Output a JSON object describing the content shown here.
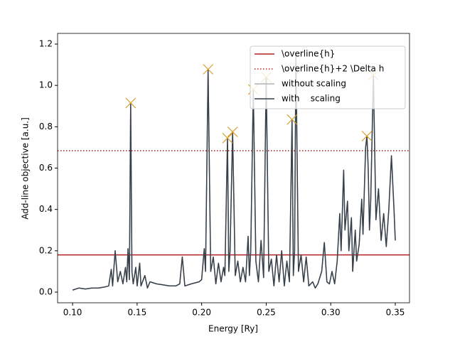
{
  "chart_data": {
    "type": "line",
    "xlabel": "Energy [Ry]",
    "ylabel": "Add-line objective [a.u.]",
    "xlim": [
      0.0884,
      0.361
    ],
    "ylim": [
      -0.0516,
      1.2516
    ],
    "xticks": [
      {
        "value": 0.1,
        "label": "0.10"
      },
      {
        "value": 0.15,
        "label": "0.15"
      },
      {
        "value": 0.2,
        "label": "0.20"
      },
      {
        "value": 0.25,
        "label": "0.25"
      },
      {
        "value": 0.3,
        "label": "0.30"
      },
      {
        "value": 0.35,
        "label": "0.35"
      }
    ],
    "yticks": [
      {
        "value": 0,
        "label": "0.0"
      },
      {
        "value": 0.2,
        "label": "0.2"
      },
      {
        "value": 0.4,
        "label": "0.4"
      },
      {
        "value": 0.6,
        "label": "0.6"
      },
      {
        "value": 0.8,
        "label": "0.8"
      },
      {
        "value": 1.0,
        "label": "1.0"
      },
      {
        "value": 1.2,
        "label": "1.2"
      }
    ],
    "hlines": [
      {
        "name": "\\overline{h}",
        "value": 0.18,
        "color": "#b22222",
        "dashed": false
      },
      {
        "name": "\\overline{h}+2 \\Delta h",
        "value": 0.684,
        "color": "#b22222",
        "dashed": true
      }
    ],
    "x": [
      0.1,
      0.105,
      0.11,
      0.115,
      0.12,
      0.125,
      0.128,
      0.13,
      0.131,
      0.133,
      0.135,
      0.137,
      0.139,
      0.141,
      0.142,
      0.143,
      0.144,
      0.145,
      0.146,
      0.147,
      0.149,
      0.15,
      0.152,
      0.153,
      0.156,
      0.158,
      0.16,
      0.165,
      0.17,
      0.175,
      0.18,
      0.183,
      0.185,
      0.187,
      0.192,
      0.198,
      0.2,
      0.202,
      0.203,
      0.205,
      0.207,
      0.209,
      0.211,
      0.213,
      0.215,
      0.217,
      0.218,
      0.22,
      0.221,
      0.222,
      0.224,
      0.226,
      0.228,
      0.23,
      0.232,
      0.234,
      0.236,
      0.237,
      0.238,
      0.24,
      0.242,
      0.244,
      0.246,
      0.248,
      0.25,
      0.252,
      0.254,
      0.256,
      0.258,
      0.26,
      0.262,
      0.264,
      0.266,
      0.268,
      0.27,
      0.271,
      0.272,
      0.273,
      0.275,
      0.277,
      0.279,
      0.281,
      0.283,
      0.286,
      0.288,
      0.29,
      0.293,
      0.295,
      0.297,
      0.299,
      0.301,
      0.303,
      0.305,
      0.307,
      0.308,
      0.31,
      0.311,
      0.313,
      0.314,
      0.316,
      0.317,
      0.319,
      0.32,
      0.322,
      0.324,
      0.325,
      0.327,
      0.328,
      0.329,
      0.33,
      0.331,
      0.333,
      0.335,
      0.337,
      0.339,
      0.341,
      0.343,
      0.345,
      0.347,
      0.349,
      0.35
    ],
    "series": [
      {
        "name": "without scaling",
        "color": "#b0b0b0",
        "values": [
          0.01,
          0.02,
          0.015,
          0.02,
          0.02,
          0.025,
          0.03,
          0.11,
          0.03,
          0.2,
          0.05,
          0.1,
          0.04,
          0.12,
          0.05,
          0.21,
          0.06,
          0.915,
          0.1,
          0.04,
          0.12,
          0.03,
          0.14,
          0.03,
          0.08,
          0.02,
          0.05,
          0.04,
          0.035,
          0.03,
          0.03,
          0.04,
          0.17,
          0.03,
          0.04,
          0.05,
          0.06,
          0.21,
          0.1,
          1.078,
          0.1,
          0.17,
          0.04,
          0.14,
          0.05,
          0.12,
          0.08,
          0.745,
          0.1,
          0.2,
          0.775,
          0.08,
          0.15,
          0.05,
          0.12,
          0.05,
          0.27,
          0.08,
          0.2,
          0.98,
          0.15,
          0.05,
          0.25,
          0.07,
          1.04,
          0.1,
          0.16,
          0.03,
          0.18,
          0.05,
          0.2,
          0.03,
          0.15,
          0.05,
          0.835,
          0.08,
          0.2,
          1.15,
          0.1,
          0.18,
          0.05,
          0.17,
          0.03,
          0.05,
          0.02,
          0.04,
          0.1,
          0.24,
          0.05,
          0.04,
          0.1,
          0.04,
          0.15,
          0.38,
          0.2,
          0.59,
          0.3,
          0.44,
          0.2,
          0.36,
          0.1,
          0.3,
          0.15,
          0.23,
          0.45,
          0.28,
          0.7,
          0.755,
          0.6,
          0.3,
          0.45,
          1.05,
          0.35,
          0.5,
          0.25,
          0.38,
          0.22,
          0.4,
          0.66,
          0.4,
          0.25
        ]
      },
      {
        "name": "with    scaling",
        "color": "#36404a",
        "values": [
          0.01,
          0.02,
          0.015,
          0.02,
          0.02,
          0.025,
          0.03,
          0.11,
          0.03,
          0.2,
          0.05,
          0.1,
          0.04,
          0.12,
          0.05,
          0.21,
          0.06,
          0.915,
          0.1,
          0.04,
          0.12,
          0.03,
          0.14,
          0.03,
          0.08,
          0.02,
          0.05,
          0.04,
          0.035,
          0.03,
          0.03,
          0.04,
          0.17,
          0.03,
          0.04,
          0.05,
          0.06,
          0.21,
          0.1,
          1.078,
          0.1,
          0.17,
          0.04,
          0.14,
          0.05,
          0.12,
          0.08,
          0.745,
          0.1,
          0.2,
          0.775,
          0.08,
          0.15,
          0.05,
          0.12,
          0.05,
          0.27,
          0.08,
          0.2,
          0.98,
          0.15,
          0.05,
          0.25,
          0.07,
          1.04,
          0.1,
          0.16,
          0.03,
          0.18,
          0.05,
          0.2,
          0.03,
          0.15,
          0.05,
          0.835,
          0.08,
          0.2,
          1.15,
          0.1,
          0.18,
          0.05,
          0.17,
          0.03,
          0.05,
          0.02,
          0.04,
          0.1,
          0.24,
          0.05,
          0.04,
          0.1,
          0.04,
          0.15,
          0.38,
          0.2,
          0.59,
          0.3,
          0.44,
          0.2,
          0.36,
          0.1,
          0.3,
          0.15,
          0.23,
          0.45,
          0.28,
          0.7,
          0.755,
          0.6,
          0.3,
          0.45,
          1.05,
          0.35,
          0.5,
          0.25,
          0.38,
          0.22,
          0.4,
          0.66,
          0.4,
          0.25
        ]
      }
    ],
    "peaks": {
      "color": "#d4a030",
      "x": [
        0.145,
        0.205,
        0.22,
        0.224,
        0.24,
        0.25,
        0.27,
        0.328,
        0.333
      ],
      "values": [
        0.915,
        1.078,
        0.745,
        0.775,
        0.98,
        1.04,
        0.835,
        0.755,
        1.05
      ]
    }
  }
}
